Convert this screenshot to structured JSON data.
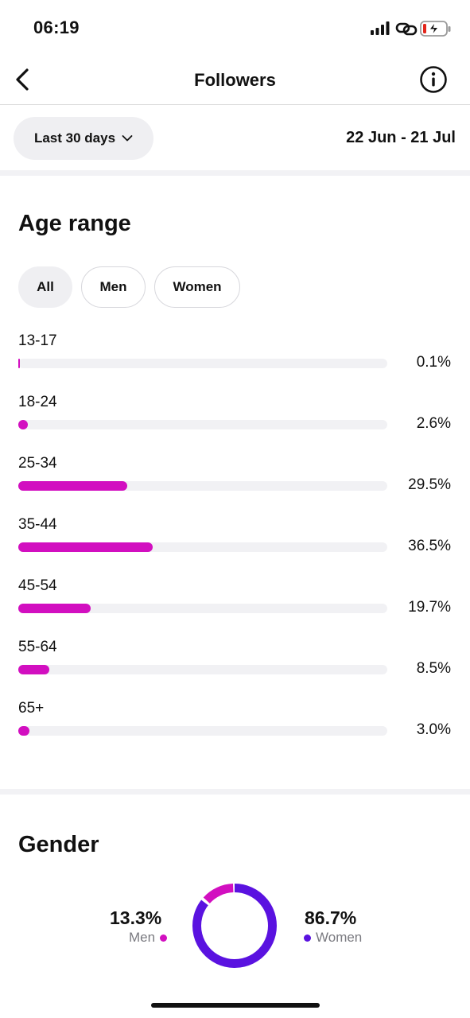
{
  "status_bar": {
    "time": "06:19"
  },
  "header": {
    "title": "Followers"
  },
  "filter": {
    "range_label": "Last 30 days",
    "date_range": "22 Jun - 21 Jul"
  },
  "age_range": {
    "title": "Age range",
    "chips": [
      "All",
      "Men",
      "Women"
    ],
    "selected_chip": "All"
  },
  "gender": {
    "title": "Gender",
    "men": {
      "value": "13.3%",
      "label": "Men",
      "share": 0.133
    },
    "women": {
      "value": "86.7%",
      "label": "Women",
      "share": 0.867
    }
  },
  "colors": {
    "accent": "#d20fc0",
    "women": "#5a12e0",
    "track": "#f1f1f4"
  },
  "chart_data": {
    "type": "bar",
    "title": "Age range",
    "categories": [
      "13-17",
      "18-24",
      "25-34",
      "35-44",
      "45-54",
      "55-64",
      "65+"
    ],
    "values": [
      0.1,
      2.6,
      29.5,
      36.5,
      19.7,
      8.5,
      3.0
    ],
    "value_labels": [
      "0.1%",
      "2.6%",
      "29.5%",
      "36.5%",
      "19.7%",
      "8.5%",
      "3.0%"
    ],
    "ylim": [
      0,
      100
    ]
  }
}
